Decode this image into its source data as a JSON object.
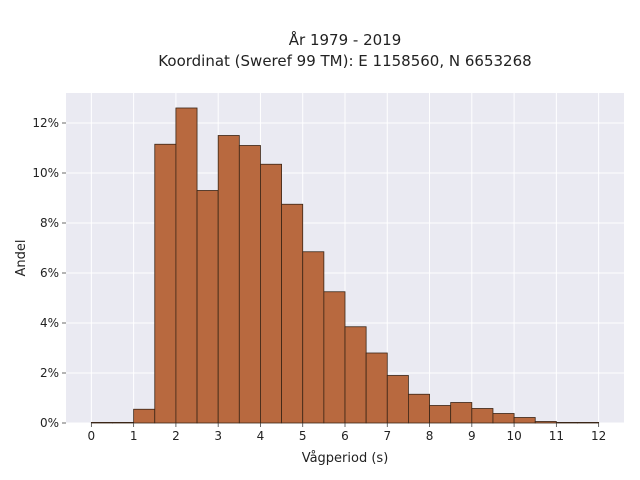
{
  "chart_data": {
    "type": "bar",
    "title": "År 1979 - 2019",
    "subtitle": "Koordinat (Sweref 99 TM): E 1158560, N 6653268",
    "xlabel": "Vågperiod (s)",
    "ylabel": "Andel",
    "xlim": [
      -0.6,
      12.6
    ],
    "ylim": [
      0,
      13.2
    ],
    "x_ticks": [
      0,
      1,
      2,
      3,
      4,
      5,
      6,
      7,
      8,
      9,
      10,
      11,
      12
    ],
    "y_ticks": [
      0,
      2,
      4,
      6,
      8,
      10,
      12
    ],
    "y_tick_labels": [
      "0%",
      "2%",
      "4%",
      "6%",
      "8%",
      "10%",
      "12%"
    ],
    "bin_width": 0.5,
    "bins": [
      {
        "x_start": 0.0,
        "x_end": 0.5,
        "value": 0.02
      },
      {
        "x_start": 0.5,
        "x_end": 1.0,
        "value": 0.0
      },
      {
        "x_start": 1.0,
        "x_end": 1.5,
        "value": 0.55
      },
      {
        "x_start": 1.5,
        "x_end": 2.0,
        "value": 11.15
      },
      {
        "x_start": 2.0,
        "x_end": 2.5,
        "value": 12.6
      },
      {
        "x_start": 2.5,
        "x_end": 3.0,
        "value": 9.3
      },
      {
        "x_start": 3.0,
        "x_end": 3.5,
        "value": 11.5
      },
      {
        "x_start": 3.5,
        "x_end": 4.0,
        "value": 11.1
      },
      {
        "x_start": 4.0,
        "x_end": 4.5,
        "value": 10.35
      },
      {
        "x_start": 4.5,
        "x_end": 5.0,
        "value": 8.75
      },
      {
        "x_start": 5.0,
        "x_end": 5.5,
        "value": 6.85
      },
      {
        "x_start": 5.5,
        "x_end": 6.0,
        "value": 5.25
      },
      {
        "x_start": 6.0,
        "x_end": 6.5,
        "value": 3.85
      },
      {
        "x_start": 6.5,
        "x_end": 7.0,
        "value": 2.8
      },
      {
        "x_start": 7.0,
        "x_end": 7.5,
        "value": 1.9
      },
      {
        "x_start": 7.5,
        "x_end": 8.0,
        "value": 1.15
      },
      {
        "x_start": 8.0,
        "x_end": 8.5,
        "value": 0.7
      },
      {
        "x_start": 8.5,
        "x_end": 9.0,
        "value": 0.82
      },
      {
        "x_start": 9.0,
        "x_end": 9.5,
        "value": 0.58
      },
      {
        "x_start": 9.5,
        "x_end": 10.0,
        "value": 0.38
      },
      {
        "x_start": 10.0,
        "x_end": 10.5,
        "value": 0.22
      },
      {
        "x_start": 10.5,
        "x_end": 11.0,
        "value": 0.06
      },
      {
        "x_start": 11.0,
        "x_end": 11.5,
        "value": 0.02
      },
      {
        "x_start": 11.5,
        "x_end": 12.0,
        "value": 0.01
      }
    ],
    "grid": true,
    "bar_color": "#b8693f",
    "plot_background": "#eaeaf2"
  }
}
